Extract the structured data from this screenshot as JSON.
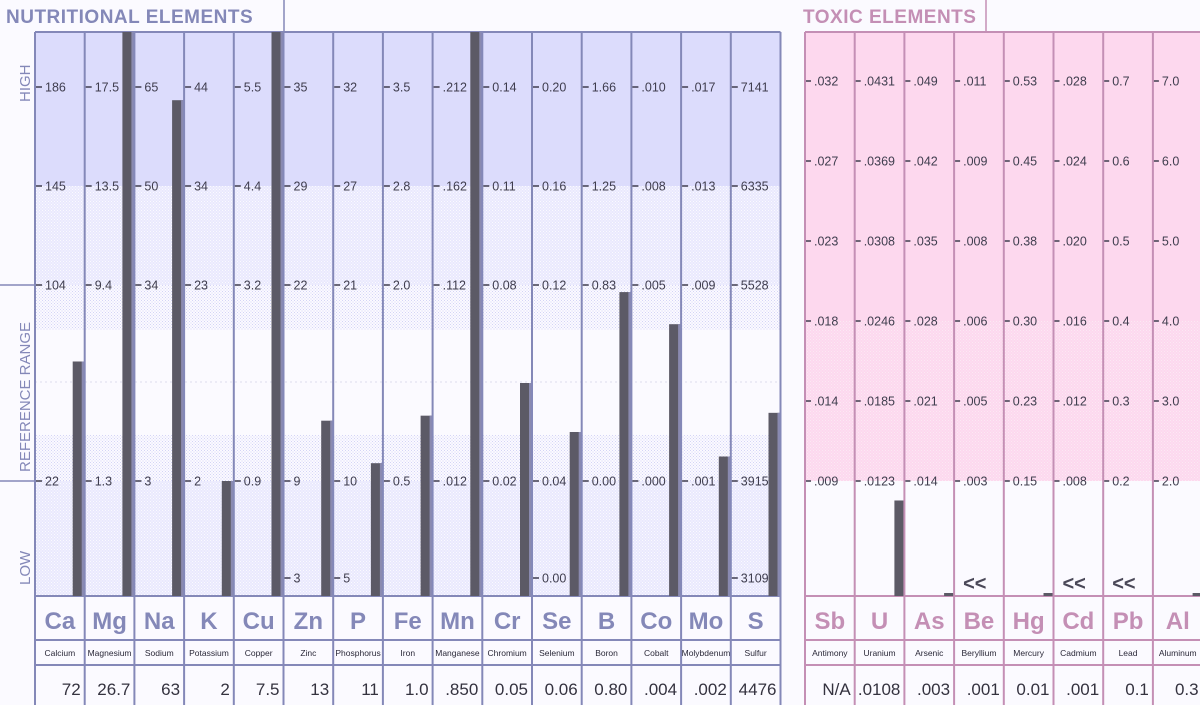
{
  "colors": {
    "nutritional_accent": "#8488b8",
    "nutritional_fill": "#dcdcfc",
    "toxic_accent": "#c48fb5",
    "toxic_fill": "#fdd8ee",
    "bar": "#5c5a66",
    "background": "#fbfaff",
    "text": "#3f3d4e"
  },
  "chart_data": [
    {
      "type": "bar",
      "title": "NUTRITIONAL ELEMENTS",
      "axis_labels": {
        "high": "HIGH",
        "reference": "REFERENCE   RANGE",
        "low": "LOW"
      },
      "tick_levels": [
        "high",
        "upper",
        "ref_top",
        "ref_bottom",
        "low"
      ],
      "elements": [
        {
          "symbol": "Ca",
          "name": "Calcium",
          "value_text": "72",
          "value": 72,
          "ticks": [
            "186",
            "145",
            "104",
            "22",
            ""
          ]
        },
        {
          "symbol": "Mg",
          "name": "Magnesium",
          "value_text": "26.7",
          "value": 26.7,
          "ticks": [
            "17.5",
            "13.5",
            "9.4",
            "1.3",
            ""
          ]
        },
        {
          "symbol": "Na",
          "name": "Sodium",
          "value_text": "63",
          "value": 63,
          "ticks": [
            "65",
            "50",
            "34",
            "3",
            ""
          ]
        },
        {
          "symbol": "K",
          "name": "Potassium",
          "value_text": "2",
          "value": 2,
          "ticks": [
            "44",
            "34",
            "23",
            "2",
            ""
          ]
        },
        {
          "symbol": "Cu",
          "name": "Copper",
          "value_text": "7.5",
          "value": 7.5,
          "ticks": [
            "5.5",
            "4.4",
            "3.2",
            "0.9",
            ""
          ]
        },
        {
          "symbol": "Zn",
          "name": "Zinc",
          "value_text": "13",
          "value": 13,
          "ticks": [
            "35",
            "29",
            "22",
            "9",
            "3"
          ]
        },
        {
          "symbol": "P",
          "name": "Phosphorus",
          "value_text": "11",
          "value": 11,
          "ticks": [
            "32",
            "27",
            "21",
            "10",
            "5"
          ]
        },
        {
          "symbol": "Fe",
          "name": "Iron",
          "value_text": "1.0",
          "value": 1.0,
          "ticks": [
            "3.5",
            "2.8",
            "2.0",
            "0.5",
            ""
          ]
        },
        {
          "symbol": "Mn",
          "name": "Manganese",
          "value_text": ".850",
          "value": 0.85,
          "ticks": [
            ".212",
            ".162",
            ".112",
            ".012",
            ""
          ]
        },
        {
          "symbol": "Cr",
          "name": "Chromium",
          "value_text": "0.05",
          "value": 0.05,
          "ticks": [
            "0.14",
            "0.11",
            "0.08",
            "0.02",
            ""
          ]
        },
        {
          "symbol": "Se",
          "name": "Selenium",
          "value_text": "0.06",
          "value": 0.06,
          "ticks": [
            "0.20",
            "0.16",
            "0.12",
            "0.04",
            "0.00"
          ]
        },
        {
          "symbol": "B",
          "name": "Boron",
          "value_text": "0.80",
          "value": 0.8,
          "ticks": [
            "1.66",
            "1.25",
            "0.83",
            "0.00",
            ""
          ]
        },
        {
          "symbol": "Co",
          "name": "Cobalt",
          "value_text": ".004",
          "value": 0.004,
          "ticks": [
            ".010",
            ".008",
            ".005",
            ".000",
            ""
          ]
        },
        {
          "symbol": "Mo",
          "name": "Molybdenum",
          "value_text": ".002",
          "value": 0.002,
          "ticks": [
            ".017",
            ".013",
            ".009",
            ".001",
            ""
          ]
        },
        {
          "symbol": "S",
          "name": "Sulfur",
          "value_text": "4476",
          "value": 4476,
          "ticks": [
            "7141",
            "6335",
            "5528",
            "3915",
            "3109"
          ]
        }
      ]
    },
    {
      "type": "bar",
      "title": "TOXIC ELEMENTS",
      "tick_levels": [
        "t0",
        "t1",
        "t2",
        "t3",
        "t4",
        "t5"
      ],
      "elements": [
        {
          "symbol": "Sb",
          "name": "Antimony",
          "value_text": "N/A",
          "value": null,
          "below_marker": "",
          "ticks": [
            ".032",
            ".027",
            ".023",
            ".018",
            ".014",
            ".009"
          ]
        },
        {
          "symbol": "U",
          "name": "Uranium",
          "value_text": ".0108",
          "value": 0.0108,
          "below_marker": "",
          "ticks": [
            ".0431",
            ".0369",
            ".0308",
            ".0246",
            ".0185",
            ".0123"
          ]
        },
        {
          "symbol": "As",
          "name": "Arsenic",
          "value_text": ".003",
          "value": 0.003,
          "below_marker": "",
          "ticks": [
            ".049",
            ".042",
            ".035",
            ".028",
            ".021",
            ".014"
          ]
        },
        {
          "symbol": "Be",
          "name": "Beryllium",
          "value_text": ".001",
          "value": 0.001,
          "below_marker": "<<",
          "ticks": [
            ".011",
            ".009",
            ".008",
            ".006",
            ".005",
            ".003"
          ]
        },
        {
          "symbol": "Hg",
          "name": "Mercury",
          "value_text": "0.01",
          "value": 0.01,
          "below_marker": "",
          "ticks": [
            "0.53",
            "0.45",
            "0.38",
            "0.30",
            "0.23",
            "0.15"
          ]
        },
        {
          "symbol": "Cd",
          "name": "Cadmium",
          "value_text": ".001",
          "value": 0.001,
          "below_marker": "<<",
          "ticks": [
            ".028",
            ".024",
            ".020",
            ".016",
            ".012",
            ".008"
          ]
        },
        {
          "symbol": "Pb",
          "name": "Lead",
          "value_text": "0.1",
          "value": 0.1,
          "below_marker": "<<",
          "ticks": [
            "0.7",
            "0.6",
            "0.5",
            "0.4",
            "0.3",
            "0.2"
          ]
        },
        {
          "symbol": "Al",
          "name": "Aluminum",
          "value_text": "0.3",
          "value": 0.3,
          "below_marker": "",
          "ticks": [
            "7.0",
            "6.0",
            "5.0",
            "4.0",
            "3.0",
            "2.0"
          ]
        }
      ]
    }
  ]
}
